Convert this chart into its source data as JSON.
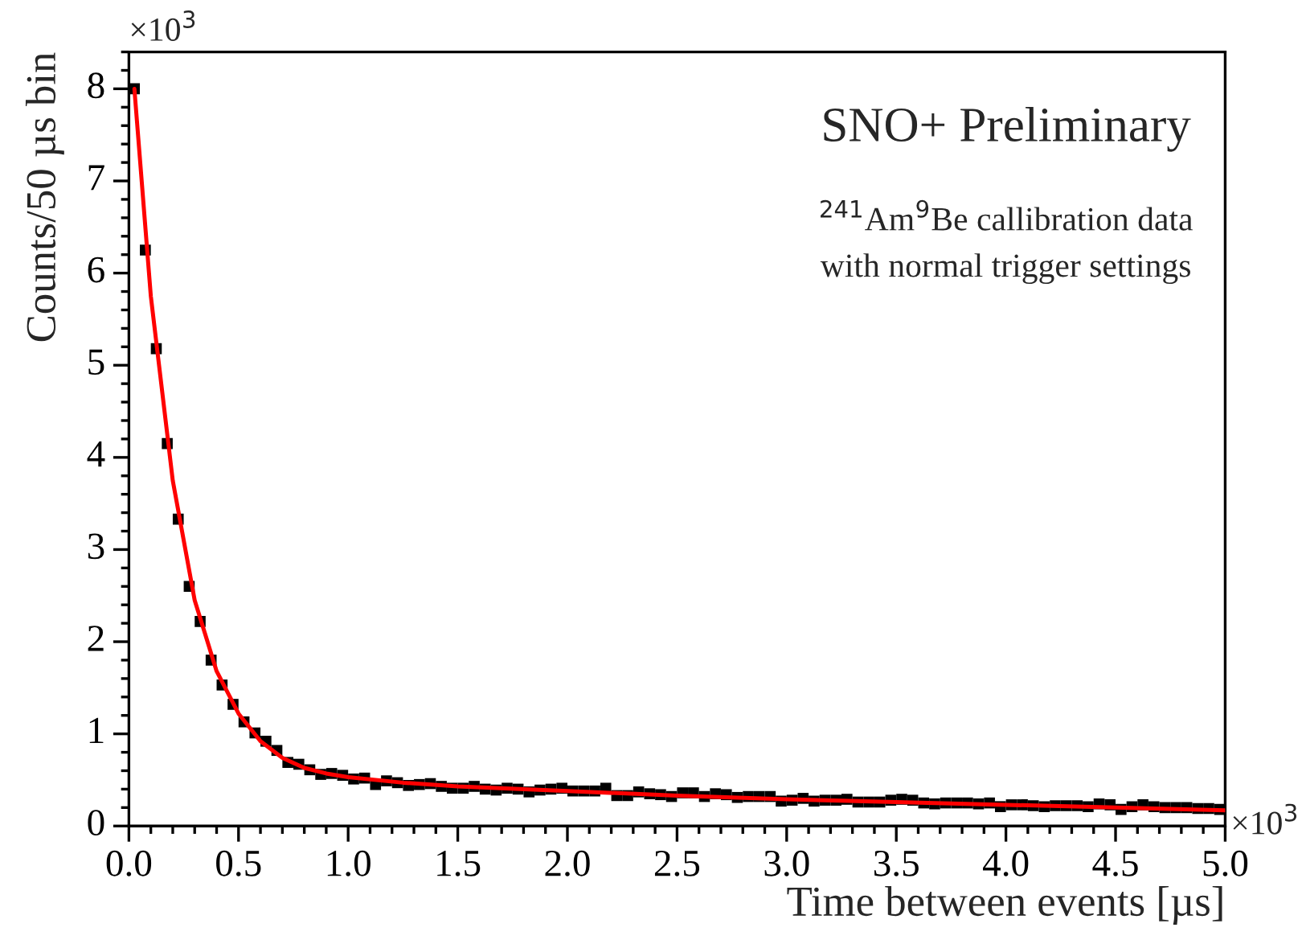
{
  "chart_data": {
    "type": "scatter",
    "xlabel": "Time between events [µs]",
    "ylabel": "Counts/50 µs bin",
    "annotations": [
      "SNO+ Preliminary",
      "$^{241}$Am$^{9}$Be callibration data",
      "with normal trigger settings",
      "×10$^{3}$",
      "×10$^{3}$"
    ],
    "xlim": [
      0,
      5
    ],
    "ylim": [
      0,
      8.4
    ],
    "xticks": [
      {
        "value": 0,
        "label": "0.0"
      },
      0.5,
      {
        "value": 1,
        "label": "1.0"
      },
      1.5,
      {
        "value": 2,
        "label": "2.0"
      },
      2.5,
      {
        "value": 3,
        "label": "3.0"
      },
      3.5,
      {
        "value": 4,
        "label": "4.0"
      },
      4.5,
      {
        "value": 5,
        "label": "5.0"
      }
    ],
    "yticks": [
      0,
      1,
      2,
      3,
      4,
      5,
      6,
      7,
      8
    ],
    "grid": false,
    "marker": "square",
    "series": [
      {
        "color": "#000000",
        "x": [
          0.025,
          0.075,
          0.125,
          0.175,
          0.225,
          0.275,
          0.325,
          0.375,
          0.425,
          0.475,
          0.525,
          0.575,
          0.625,
          0.675,
          0.725,
          0.775,
          0.825,
          0.875,
          0.925,
          0.975,
          1.025,
          1.075,
          1.125,
          1.175,
          1.225,
          1.275,
          1.325,
          1.375,
          1.425,
          1.475,
          1.525,
          1.575,
          1.625,
          1.675,
          1.725,
          1.775,
          1.825,
          1.875,
          1.925,
          1.975,
          2.025,
          2.075,
          2.125,
          2.175,
          2.225,
          2.275,
          2.325,
          2.375,
          2.425,
          2.475,
          2.525,
          2.575,
          2.625,
          2.675,
          2.725,
          2.775,
          2.825,
          2.875,
          2.925,
          2.975,
          3.025,
          3.075,
          3.125,
          3.175,
          3.225,
          3.275,
          3.325,
          3.375,
          3.425,
          3.475,
          3.525,
          3.575,
          3.625,
          3.675,
          3.725,
          3.775,
          3.825,
          3.875,
          3.925,
          3.975,
          4.025,
          4.075,
          4.125,
          4.175,
          4.225,
          4.275,
          4.325,
          4.375,
          4.425,
          4.475,
          4.525,
          4.575,
          4.625,
          4.675,
          4.725,
          4.775,
          4.825,
          4.875,
          4.925,
          4.975
        ],
        "values": [
          8.0,
          6.25,
          5.18,
          4.15,
          3.33,
          2.6,
          2.22,
          1.8,
          1.53,
          1.32,
          1.13,
          1.01,
          0.92,
          0.82,
          0.69,
          0.67,
          0.61,
          0.56,
          0.57,
          0.55,
          0.51,
          0.52,
          0.45,
          0.49,
          0.47,
          0.44,
          0.45,
          0.46,
          0.43,
          0.41,
          0.41,
          0.43,
          0.4,
          0.39,
          0.41,
          0.4,
          0.37,
          0.39,
          0.4,
          0.41,
          0.38,
          0.38,
          0.38,
          0.41,
          0.33,
          0.33,
          0.37,
          0.35,
          0.34,
          0.32,
          0.36,
          0.36,
          0.32,
          0.35,
          0.34,
          0.31,
          0.32,
          0.32,
          0.32,
          0.27,
          0.28,
          0.3,
          0.27,
          0.28,
          0.28,
          0.29,
          0.26,
          0.26,
          0.26,
          0.28,
          0.29,
          0.28,
          0.25,
          0.24,
          0.25,
          0.25,
          0.25,
          0.24,
          0.25,
          0.21,
          0.23,
          0.23,
          0.22,
          0.21,
          0.22,
          0.22,
          0.22,
          0.21,
          0.24,
          0.23,
          0.18,
          0.21,
          0.23,
          0.21,
          0.2,
          0.2,
          0.2,
          0.19,
          0.19,
          0.18
        ]
      },
      {
        "type": "line",
        "color": "#ff0000",
        "marker": "none",
        "line_style": "solid",
        "x": [
          0.025,
          0.1,
          0.2,
          0.3,
          0.4,
          0.5,
          0.6,
          0.7,
          0.8,
          0.9,
          1.0,
          1.25,
          1.5,
          2.0,
          2.5,
          3.0,
          3.5,
          4.0,
          4.5,
          5.0
        ],
        "values": [
          8.0,
          5.75,
          3.75,
          2.45,
          1.68,
          1.22,
          0.92,
          0.74,
          0.63,
          0.57,
          0.53,
          0.47,
          0.43,
          0.38,
          0.33,
          0.29,
          0.26,
          0.23,
          0.2,
          0.17
        ]
      }
    ]
  }
}
